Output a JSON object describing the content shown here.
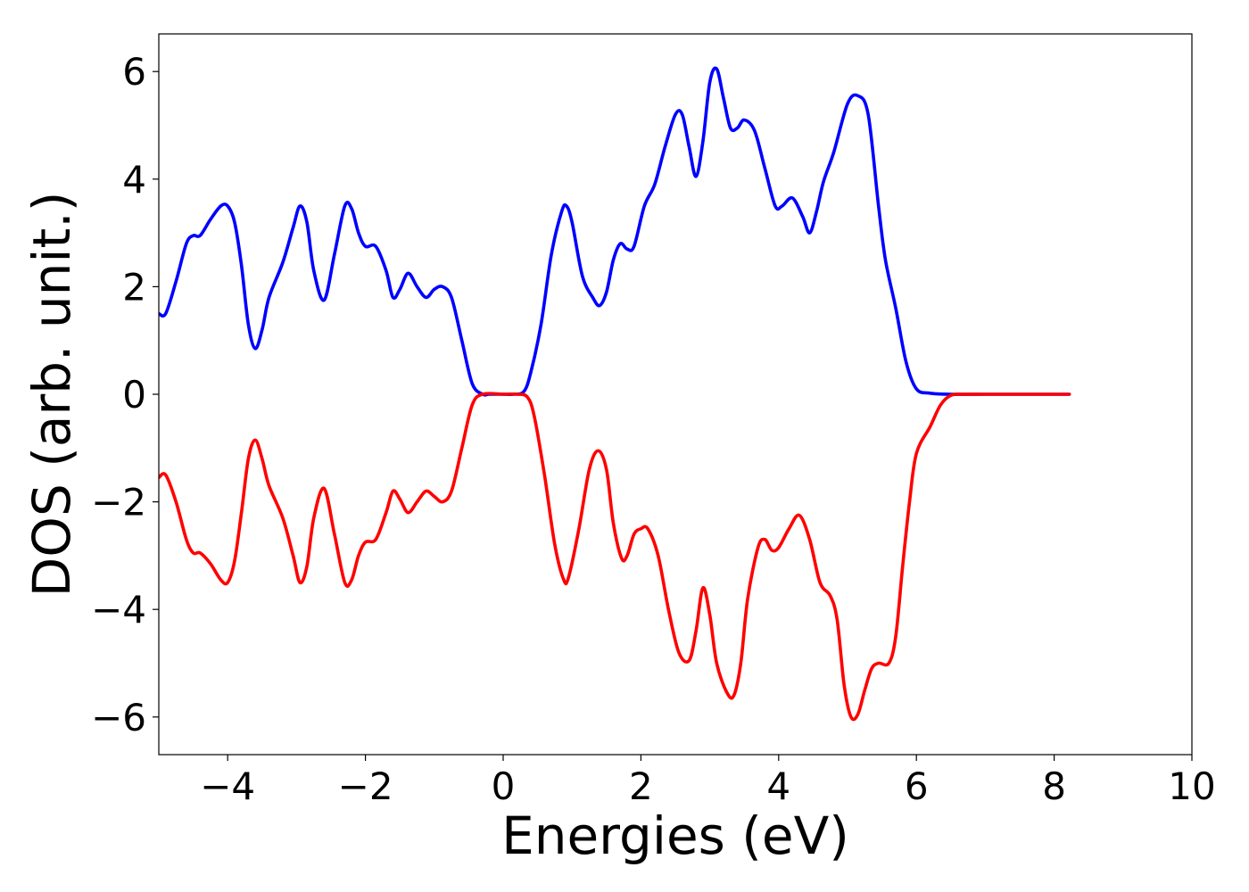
{
  "chart_data": {
    "type": "line",
    "title": "",
    "xlabel": "Energies (eV)",
    "ylabel": "DOS (arb. unit.)",
    "xlim": [
      -5,
      10
    ],
    "ylim": [
      -6.7,
      6.7
    ],
    "x_ticks": [
      {
        "value": -4,
        "label": "−4"
      },
      {
        "value": -2,
        "label": "−2"
      },
      {
        "value": 0,
        "label": "0"
      },
      {
        "value": 2,
        "label": "2"
      },
      {
        "value": 4,
        "label": "4"
      },
      {
        "value": 6,
        "label": "6"
      },
      {
        "value": 8,
        "label": "8"
      },
      {
        "value": 10,
        "label": "10"
      }
    ],
    "y_ticks": [
      {
        "value": -6,
        "label": "−6"
      },
      {
        "value": -4,
        "label": "−4"
      },
      {
        "value": -2,
        "label": "−2"
      },
      {
        "value": 0,
        "label": "0"
      },
      {
        "value": 2,
        "label": "2"
      },
      {
        "value": 4,
        "label": "4"
      },
      {
        "value": 6,
        "label": "6"
      }
    ],
    "grid": false,
    "legend": "none",
    "series": [
      {
        "color": "#0000ff",
        "points": [
          [
            -5.0,
            1.5
          ],
          [
            -4.9,
            1.5
          ],
          [
            -4.75,
            2.1
          ],
          [
            -4.6,
            2.8
          ],
          [
            -4.5,
            2.95
          ],
          [
            -4.4,
            2.95
          ],
          [
            -4.25,
            3.25
          ],
          [
            -4.1,
            3.5
          ],
          [
            -4.0,
            3.5
          ],
          [
            -3.9,
            3.2
          ],
          [
            -3.8,
            2.4
          ],
          [
            -3.7,
            1.3
          ],
          [
            -3.6,
            0.85
          ],
          [
            -3.5,
            1.2
          ],
          [
            -3.4,
            1.8
          ],
          [
            -3.2,
            2.45
          ],
          [
            -3.05,
            3.1
          ],
          [
            -2.95,
            3.5
          ],
          [
            -2.85,
            3.2
          ],
          [
            -2.75,
            2.3
          ],
          [
            -2.6,
            1.75
          ],
          [
            -2.45,
            2.6
          ],
          [
            -2.3,
            3.5
          ],
          [
            -2.2,
            3.45
          ],
          [
            -2.1,
            3.0
          ],
          [
            -2.0,
            2.75
          ],
          [
            -1.85,
            2.75
          ],
          [
            -1.7,
            2.3
          ],
          [
            -1.6,
            1.8
          ],
          [
            -1.5,
            1.95
          ],
          [
            -1.38,
            2.25
          ],
          [
            -1.25,
            2.0
          ],
          [
            -1.12,
            1.8
          ],
          [
            -1.0,
            1.95
          ],
          [
            -0.88,
            2.0
          ],
          [
            -0.75,
            1.8
          ],
          [
            -0.6,
            1.0
          ],
          [
            -0.45,
            0.2
          ],
          [
            -0.3,
            0.0
          ],
          [
            -0.2,
            0.0
          ],
          [
            0.0,
            0.0
          ],
          [
            0.15,
            0.0
          ],
          [
            0.3,
            0.05
          ],
          [
            0.4,
            0.4
          ],
          [
            0.55,
            1.3
          ],
          [
            0.7,
            2.6
          ],
          [
            0.85,
            3.4
          ],
          [
            0.92,
            3.5
          ],
          [
            1.0,
            3.2
          ],
          [
            1.15,
            2.2
          ],
          [
            1.3,
            1.8
          ],
          [
            1.4,
            1.65
          ],
          [
            1.5,
            1.9
          ],
          [
            1.6,
            2.5
          ],
          [
            1.7,
            2.8
          ],
          [
            1.8,
            2.7
          ],
          [
            1.9,
            2.75
          ],
          [
            2.05,
            3.5
          ],
          [
            2.2,
            3.9
          ],
          [
            2.35,
            4.6
          ],
          [
            2.5,
            5.2
          ],
          [
            2.6,
            5.2
          ],
          [
            2.7,
            4.6
          ],
          [
            2.8,
            4.05
          ],
          [
            2.9,
            4.7
          ],
          [
            3.0,
            5.8
          ],
          [
            3.1,
            6.05
          ],
          [
            3.2,
            5.5
          ],
          [
            3.3,
            4.95
          ],
          [
            3.4,
            4.95
          ],
          [
            3.5,
            5.1
          ],
          [
            3.65,
            4.9
          ],
          [
            3.8,
            4.2
          ],
          [
            3.95,
            3.5
          ],
          [
            4.05,
            3.5
          ],
          [
            4.2,
            3.65
          ],
          [
            4.35,
            3.3
          ],
          [
            4.45,
            3.0
          ],
          [
            4.55,
            3.4
          ],
          [
            4.65,
            3.95
          ],
          [
            4.8,
            4.5
          ],
          [
            5.0,
            5.4
          ],
          [
            5.15,
            5.55
          ],
          [
            5.3,
            5.2
          ],
          [
            5.45,
            3.5
          ],
          [
            5.55,
            2.5
          ],
          [
            5.7,
            1.6
          ],
          [
            5.85,
            0.6
          ],
          [
            6.0,
            0.1
          ],
          [
            6.2,
            0.02
          ],
          [
            6.5,
            0.0
          ],
          [
            7.0,
            0.0
          ],
          [
            7.5,
            0.0
          ],
          [
            8.22,
            0.0
          ]
        ]
      },
      {
        "color": "#ff0000",
        "points": [
          [
            -5.0,
            -1.55
          ],
          [
            -4.9,
            -1.5
          ],
          [
            -4.75,
            -2.0
          ],
          [
            -4.6,
            -2.7
          ],
          [
            -4.5,
            -2.95
          ],
          [
            -4.4,
            -2.95
          ],
          [
            -4.25,
            -3.15
          ],
          [
            -4.1,
            -3.45
          ],
          [
            -4.0,
            -3.5
          ],
          [
            -3.9,
            -3.1
          ],
          [
            -3.8,
            -2.2
          ],
          [
            -3.7,
            -1.2
          ],
          [
            -3.6,
            -0.85
          ],
          [
            -3.5,
            -1.2
          ],
          [
            -3.4,
            -1.7
          ],
          [
            -3.2,
            -2.3
          ],
          [
            -3.05,
            -3.0
          ],
          [
            -2.95,
            -3.5
          ],
          [
            -2.85,
            -3.2
          ],
          [
            -2.75,
            -2.3
          ],
          [
            -2.6,
            -1.75
          ],
          [
            -2.45,
            -2.6
          ],
          [
            -2.3,
            -3.5
          ],
          [
            -2.2,
            -3.45
          ],
          [
            -2.1,
            -3.0
          ],
          [
            -2.0,
            -2.75
          ],
          [
            -1.85,
            -2.7
          ],
          [
            -1.7,
            -2.2
          ],
          [
            -1.6,
            -1.8
          ],
          [
            -1.5,
            -1.95
          ],
          [
            -1.38,
            -2.2
          ],
          [
            -1.25,
            -2.0
          ],
          [
            -1.12,
            -1.8
          ],
          [
            -1.0,
            -1.9
          ],
          [
            -0.88,
            -2.0
          ],
          [
            -0.75,
            -1.8
          ],
          [
            -0.6,
            -1.0
          ],
          [
            -0.45,
            -0.2
          ],
          [
            -0.3,
            0.0
          ],
          [
            0.0,
            0.0
          ],
          [
            0.2,
            0.0
          ],
          [
            0.35,
            -0.05
          ],
          [
            0.45,
            -0.4
          ],
          [
            0.6,
            -1.5
          ],
          [
            0.75,
            -2.8
          ],
          [
            0.88,
            -3.45
          ],
          [
            0.95,
            -3.4
          ],
          [
            1.1,
            -2.5
          ],
          [
            1.25,
            -1.4
          ],
          [
            1.38,
            -1.05
          ],
          [
            1.5,
            -1.4
          ],
          [
            1.6,
            -2.4
          ],
          [
            1.72,
            -3.05
          ],
          [
            1.8,
            -3.0
          ],
          [
            1.9,
            -2.6
          ],
          [
            2.0,
            -2.5
          ],
          [
            2.1,
            -2.5
          ],
          [
            2.25,
            -3.0
          ],
          [
            2.4,
            -4.0
          ],
          [
            2.55,
            -4.8
          ],
          [
            2.7,
            -4.95
          ],
          [
            2.8,
            -4.4
          ],
          [
            2.9,
            -3.6
          ],
          [
            3.0,
            -4.1
          ],
          [
            3.1,
            -5.0
          ],
          [
            3.25,
            -5.55
          ],
          [
            3.35,
            -5.6
          ],
          [
            3.45,
            -5.0
          ],
          [
            3.55,
            -3.8
          ],
          [
            3.7,
            -2.85
          ],
          [
            3.8,
            -2.7
          ],
          [
            3.9,
            -2.9
          ],
          [
            4.0,
            -2.85
          ],
          [
            4.15,
            -2.5
          ],
          [
            4.3,
            -2.25
          ],
          [
            4.45,
            -2.7
          ],
          [
            4.6,
            -3.5
          ],
          [
            4.75,
            -3.75
          ],
          [
            4.85,
            -4.2
          ],
          [
            4.95,
            -5.4
          ],
          [
            5.05,
            -6.0
          ],
          [
            5.15,
            -5.95
          ],
          [
            5.25,
            -5.5
          ],
          [
            5.35,
            -5.1
          ],
          [
            5.45,
            -5.0
          ],
          [
            5.6,
            -5.0
          ],
          [
            5.7,
            -4.5
          ],
          [
            5.8,
            -3.2
          ],
          [
            5.9,
            -2.0
          ],
          [
            6.0,
            -1.1
          ],
          [
            6.2,
            -0.6
          ],
          [
            6.35,
            -0.2
          ],
          [
            6.5,
            -0.02
          ],
          [
            6.7,
            0.0
          ],
          [
            7.0,
            0.0
          ],
          [
            7.5,
            0.0
          ],
          [
            8.22,
            0.0
          ]
        ]
      }
    ]
  }
}
